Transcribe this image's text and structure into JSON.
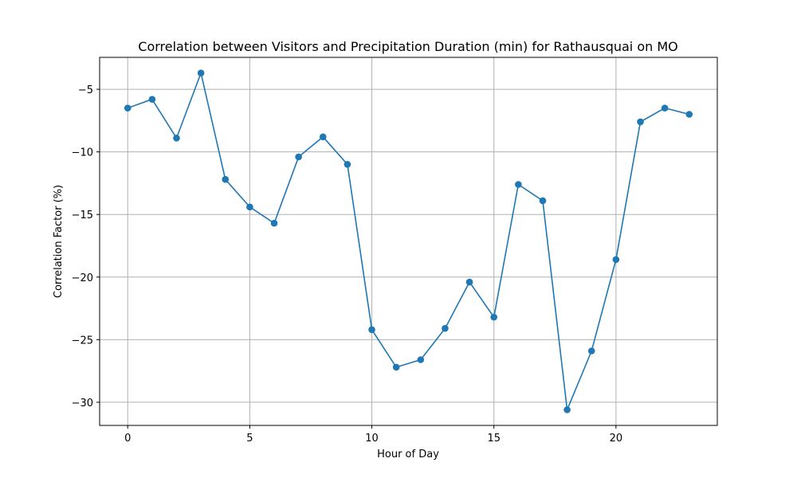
{
  "chart_data": {
    "type": "line",
    "title": "Correlation between Visitors and Precipitation Duration (min) for Rathausquai on MO",
    "xlabel": "Hour of Day",
    "ylabel": "Correlation Factor (%)",
    "x": [
      0,
      1,
      2,
      3,
      4,
      5,
      6,
      7,
      8,
      9,
      10,
      11,
      12,
      13,
      14,
      15,
      16,
      17,
      18,
      19,
      20,
      21,
      22,
      23
    ],
    "series": [
      {
        "name": "",
        "values": [
          -6.5,
          -5.8,
          -8.9,
          -3.7,
          -12.2,
          -14.4,
          -15.7,
          -10.4,
          -8.8,
          -11.0,
          -24.2,
          -27.2,
          -26.6,
          -24.1,
          -20.4,
          -23.2,
          -12.6,
          -13.9,
          -30.6,
          -25.9,
          -18.6,
          -7.6,
          -6.5,
          -7.0
        ],
        "color": "#1f77b4"
      }
    ],
    "xlim": [
      -1.15,
      24.15
    ],
    "ylim": [
      -31.85,
      -2.45
    ],
    "xticks": [
      0,
      5,
      10,
      15,
      20
    ],
    "yticks": [
      -30,
      -25,
      -20,
      -15,
      -10,
      -5
    ],
    "ytick_labels": [
      "−30",
      "−25",
      "−20",
      "−15",
      "−10",
      "−5"
    ],
    "grid": true
  }
}
